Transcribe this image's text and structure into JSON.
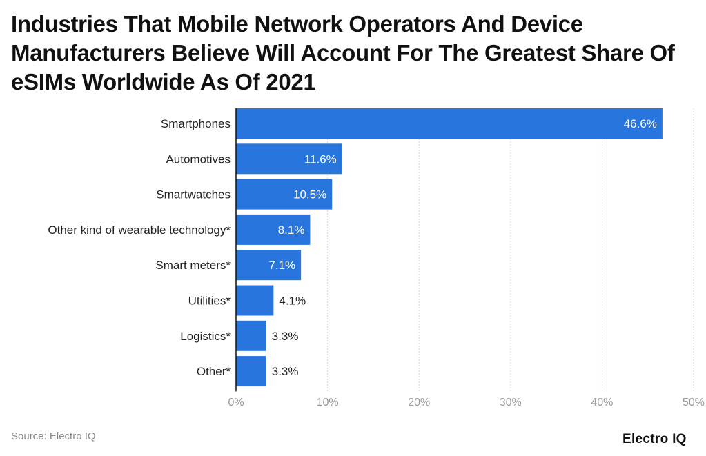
{
  "title": "Industries That Mobile Network Operators And Device Manufacturers Believe Will Account For The Greatest Share Of eSIMs Worldwide As Of 2021",
  "source": "Source: Electro IQ",
  "logo": "Electro IQ",
  "colors": {
    "bar": "#2876dd",
    "grid": "#d9d9d9",
    "axis": "#111111",
    "tick": "#999999"
  },
  "chart_data": {
    "type": "bar",
    "orientation": "horizontal",
    "title": "Industries That Mobile Network Operators And Device Manufacturers Believe Will Account For The Greatest Share Of eSIMs Worldwide As Of 2021",
    "categories": [
      "Smartphones",
      "Automotives",
      "Smartwatches",
      "Other kind of wearable technology*",
      "Smart meters*",
      "Utilities*",
      "Logistics*",
      "Other*"
    ],
    "values": [
      46.6,
      11.6,
      10.5,
      8.1,
      7.1,
      4.1,
      3.3,
      3.3
    ],
    "data_labels": [
      "46.6%",
      "11.6%",
      "10.5%",
      "8.1%",
      "7.1%",
      "4.1%",
      "3.3%",
      "3.3%"
    ],
    "xlim": [
      0,
      50
    ],
    "ticks": [
      "0%",
      "10%",
      "20%",
      "30%",
      "40%",
      "50%"
    ],
    "grid": true,
    "xlabel": "",
    "ylabel": ""
  }
}
